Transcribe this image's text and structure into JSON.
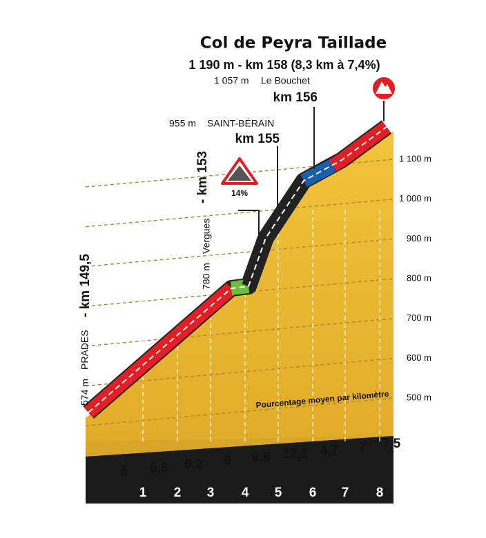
{
  "title": "Col de Peyra Taillade",
  "summit": "1 190 m  - km 158 (8,3 km à 7,4%)",
  "points": [
    {
      "altitude": "1 057 m",
      "name": "Le Bouchet",
      "km": "km 156"
    },
    {
      "altitude": "955 m",
      "name": "SAINT-BÉRAIN",
      "km": "km 155"
    },
    {
      "altitude": "780 m",
      "name": "Vergues",
      "km": "- km 153"
    },
    {
      "altitude": "574 m",
      "name": "PRADES",
      "km": "- km 149,5"
    }
  ],
  "steep_sign": "14%",
  "altitude_labels": [
    "1 100 m",
    "1 000 m",
    "900 m",
    "800 m",
    "700 m",
    "600 m",
    "500 m"
  ],
  "gradient_caption": "Pourcentage moyen par kilomètre",
  "gradients": [
    "6",
    "6,8",
    "6,2",
    "6",
    "9,8",
    "12,1",
    "4,7",
    "7",
    "7,5"
  ],
  "km_markers": [
    "1",
    "2",
    "3",
    "4",
    "5",
    "6",
    "7",
    "8"
  ]
}
